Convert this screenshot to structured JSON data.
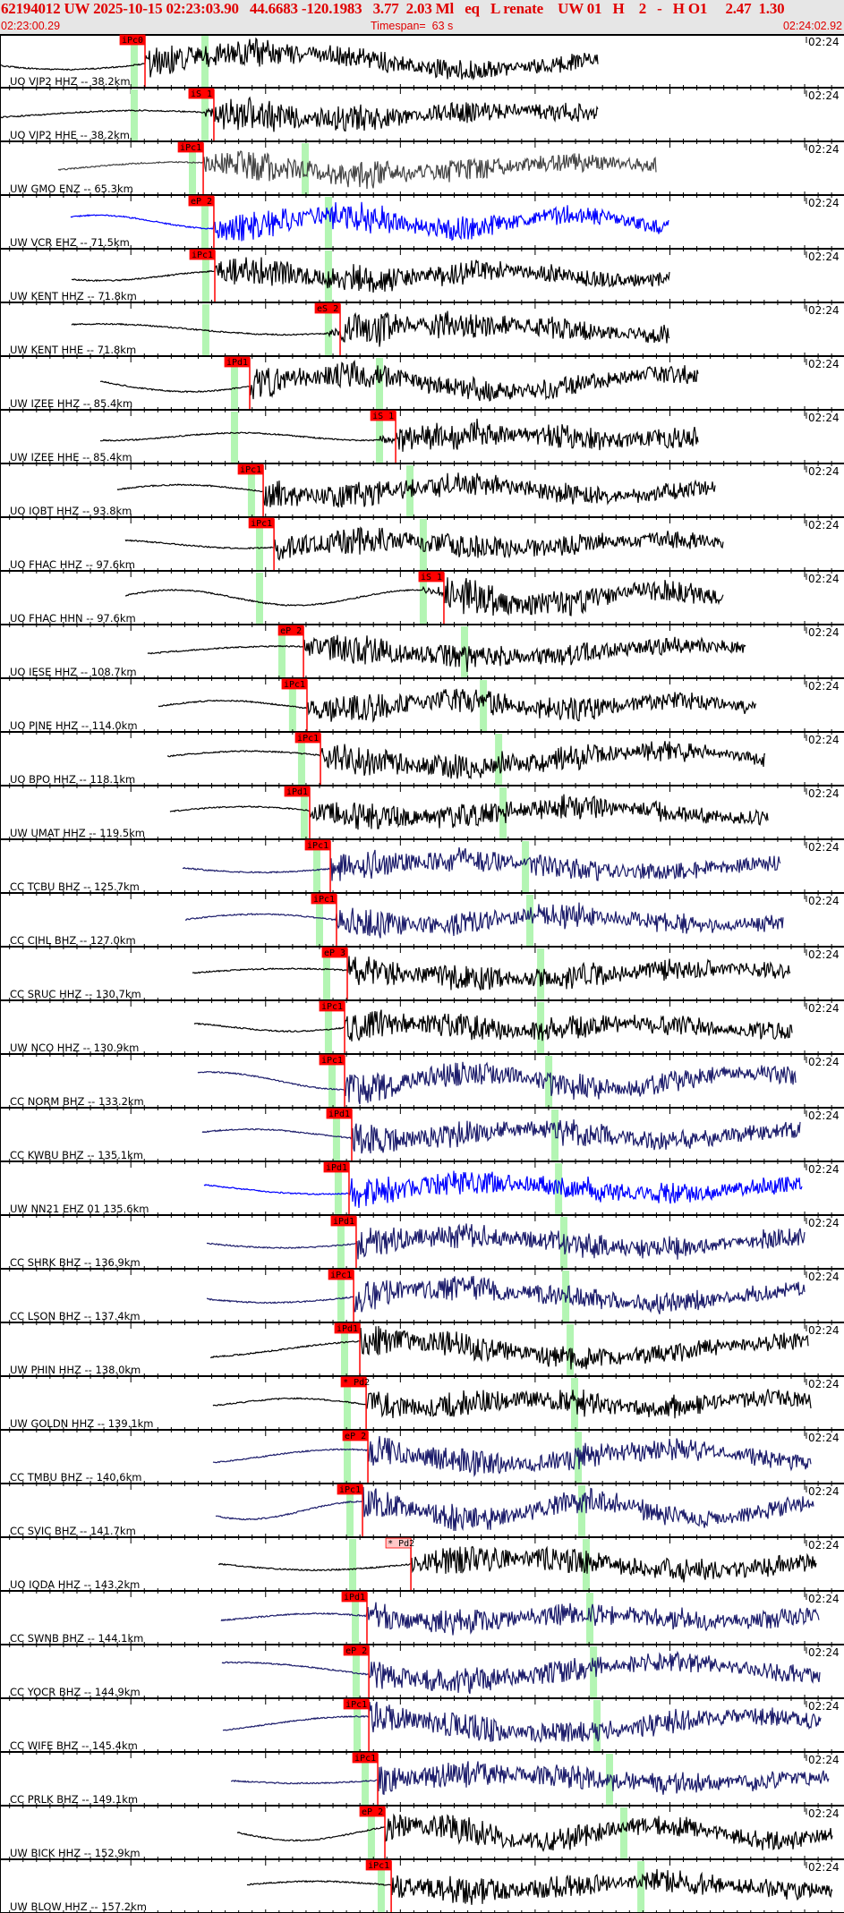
{
  "header": {
    "title": "62194012 UW 2025-10-15 02:23:03.90   44.6683 -120.1983   3.77  2.03 Ml   eq   L renate    UW 01   H    2   -   H O1     2.47  1.30",
    "start_time": "02:23:00.29",
    "timespan": "Timespan=  63 s",
    "end_time": "02:24:02.92"
  },
  "colors": {
    "header_text": "#e00000",
    "pick": "#ff0000",
    "theoretical_band": "#b3f5b3",
    "black": "#000000",
    "gray": "#444444",
    "blue": "#0000ff",
    "navy": "#1c1c6b"
  },
  "chart_data": {
    "type": "line",
    "x_axis": {
      "start": "02:23:00.29",
      "end": "02:24:02.92",
      "unit": "s",
      "major_tick_s": 10,
      "minor_tick_s": 1
    },
    "traces": [
      {
        "label": "UO VIP2 HHZ -- 38.2km",
        "right_label": "02:24",
        "color": "black",
        "pick": "iPc0",
        "pick_time": "02:23:11.05",
        "p_band": "02:23:10.25",
        "s_band": "02:23:15.50"
      },
      {
        "label": "UO VIP2 HHE -- 38.2km",
        "right_label": "02:24",
        "color": "black",
        "pick": "iS 1",
        "pick_time": "02:23:16.16",
        "p_band": "02:23:10.25",
        "s_band": "02:23:15.50"
      },
      {
        "label": "UW GMO ENZ -- 65.3km",
        "right_label": "02:24",
        "color": "gray",
        "pick": "iPc1",
        "pick_time": "02:23:15.37",
        "p_band": "02:23:14.57",
        "s_band": "02:23:22.94"
      },
      {
        "label": "UW VCR EHZ -- 71.5km",
        "right_label": "02:24",
        "color": "blue",
        "pick": "eP 2",
        "pick_time": "02:23:16.16",
        "p_band": "02:23:15.50",
        "s_band": "02:23:24.66"
      },
      {
        "label": "UW KENT HHZ -- 71.8km",
        "right_label": "02:24",
        "color": "black",
        "pick": "iPc1",
        "pick_time": "02:23:16.23",
        "p_band": "02:23:15.56",
        "s_band": "02:23:24.66"
      },
      {
        "label": "UW KENT HHE -- 71.8km",
        "right_label": "02:24",
        "color": "black",
        "pick": "eS 2",
        "pick_time": "02:23:25.53",
        "p_band": "02:23:15.56",
        "s_band": "02:23:24.66"
      },
      {
        "label": "UW IZEE HHZ -- 85.4km",
        "right_label": "02:24",
        "color": "black",
        "pick": "iPd1",
        "pick_time": "02:23:18.82",
        "p_band": "02:23:17.69",
        "s_band": "02:23:28.45"
      },
      {
        "label": "UW IZEE HHE -- 85.4km",
        "right_label": "02:24",
        "color": "black",
        "pick": "iS 1",
        "pick_time": "02:23:29.65",
        "p_band": "02:23:17.69",
        "s_band": "02:23:28.45"
      },
      {
        "label": "UO IOBT HHZ -- 93.8km",
        "right_label": "02:24",
        "color": "black",
        "pick": "iPc1",
        "pick_time": "02:23:19.82",
        "p_band": "02:23:18.95",
        "s_band": "02:23:30.71"
      },
      {
        "label": "UO FHAC HHZ -- 97.6km",
        "right_label": "02:24",
        "color": "black",
        "pick": "iPc1",
        "pick_time": "02:23:20.62",
        "p_band": "02:23:19.55",
        "s_band": "02:23:31.70"
      },
      {
        "label": "UO FHAC HHN -- 97.6km",
        "right_label": "02:24",
        "color": "black",
        "pick": "iS 1",
        "pick_time": "02:23:33.23",
        "p_band": "02:23:19.55",
        "s_band": "02:23:31.70"
      },
      {
        "label": "UO IESE HHZ -- 108.7km",
        "right_label": "02:24",
        "color": "black",
        "pick": "eP 2",
        "pick_time": "02:23:22.81",
        "p_band": "02:23:21.21",
        "s_band": "02:23:34.76"
      },
      {
        "label": "UO PINE HHZ -- 114.0km",
        "right_label": "02:24",
        "color": "black",
        "pick": "iPc1",
        "pick_time": "02:23:23.07",
        "p_band": "02:23:22.00",
        "s_band": "02:23:36.16"
      },
      {
        "label": "UO BPO HHZ -- 118.1km",
        "right_label": "02:24",
        "color": "black",
        "pick": "iPc1",
        "pick_time": "02:23:24.07",
        "p_band": "02:23:22.67",
        "s_band": "02:23:37.29"
      },
      {
        "label": "UW UMAT HHZ -- 119.5km",
        "right_label": "02:24",
        "color": "black",
        "pick": "iPd1",
        "pick_time": "02:23:23.27",
        "p_band": "02:23:22.87",
        "s_band": "02:23:37.62"
      },
      {
        "label": "CC TCBU BHZ -- 125.7km",
        "right_label": "02:24",
        "color": "navy",
        "pick": "iPc1",
        "pick_time": "02:23:24.80",
        "p_band": "02:23:23.80",
        "s_band": "02:23:39.28"
      },
      {
        "label": "CC CIHL BHZ -- 127.0km",
        "right_label": "02:24",
        "color": "navy",
        "pick": "iPc1",
        "pick_time": "02:23:25.26",
        "p_band": "02:23:24.00",
        "s_band": "02:23:39.61"
      },
      {
        "label": "CC SRUC HHZ -- 130.7km",
        "right_label": "02:24",
        "color": "black",
        "pick": "eP 3",
        "pick_time": "02:23:26.06",
        "p_band": "02:23:24.53",
        "s_band": "02:23:40.41"
      },
      {
        "label": "UW NCO HHZ -- 130.9km",
        "right_label": "02:24",
        "color": "black",
        "pick": "iPc1",
        "pick_time": "02:23:25.86",
        "p_band": "02:23:24.66",
        "s_band": "02:23:40.41"
      },
      {
        "label": "CC NORM BHZ -- 133.2km",
        "right_label": "02:24",
        "color": "navy",
        "pick": "iPc1",
        "pick_time": "02:23:25.86",
        "p_band": "02:23:24.93",
        "s_band": "02:23:41.01"
      },
      {
        "label": "CC KWBU BHZ -- 135.1km",
        "right_label": "02:24",
        "color": "navy",
        "pick": "iPd1",
        "pick_time": "02:23:26.39",
        "p_band": "02:23:25.26",
        "s_band": "02:23:41.47"
      },
      {
        "label": "UW NN21 EHZ 01 135.6km",
        "right_label": "02:24",
        "color": "blue",
        "pick": "iPd1",
        "pick_time": "02:23:26.19",
        "p_band": "02:23:25.39",
        "s_band": "02:23:41.74"
      },
      {
        "label": "CC SHRK BHZ -- 136.9km",
        "right_label": "02:24",
        "color": "navy",
        "pick": "iPd1",
        "pick_time": "02:23:26.72",
        "p_band": "02:23:25.59",
        "s_band": "02:23:42.13"
      },
      {
        "label": "CC LSON BHZ -- 137.4km",
        "right_label": "02:24",
        "color": "navy",
        "pick": "iPc1",
        "pick_time": "02:23:26.53",
        "p_band": "02:23:25.59",
        "s_band": "02:23:42.27"
      },
      {
        "label": "UW PHIN HHZ -- 138.0km",
        "right_label": "02:24",
        "color": "black",
        "pick": "iPd1",
        "pick_time": "02:23:26.99",
        "p_band": "02:23:25.86",
        "s_band": "02:23:42.60"
      },
      {
        "label": "UW GOLDN HHZ -- 139.1km",
        "right_label": "02:24",
        "color": "black",
        "pick": "* Pd2",
        "pick_time": "02:23:27.46",
        "p_band": "02:23:26.06",
        "s_band": "02:23:42.93"
      },
      {
        "label": "CC TMBU BHZ -- 140.6km",
        "right_label": "02:24",
        "color": "navy",
        "pick": "eP 2",
        "pick_time": "02:23:27.59",
        "p_band": "02:23:26.06",
        "s_band": "02:23:43.20"
      },
      {
        "label": "CC SVIC BHZ -- 141.7km",
        "right_label": "02:24",
        "color": "navy",
        "pick": "iPc1",
        "pick_time": "02:23:27.19",
        "p_band": "02:23:26.26",
        "s_band": "02:23:43.46"
      },
      {
        "label": "UO IQDA HHZ -- 143.2km",
        "right_label": "02:24",
        "color": "black",
        "pick": "* Pd2",
        "pick_time": "02:23:30.78",
        "pick_style": "pale",
        "p_band": "02:23:26.46",
        "s_band": "02:23:43.79"
      },
      {
        "label": "CC SWNB BHZ -- 144.1km",
        "right_label": "02:24",
        "color": "navy",
        "pick": "iPd1",
        "pick_time": "02:23:27.52",
        "p_band": "02:23:26.66",
        "s_band": "02:23:44.06"
      },
      {
        "label": "CC YOCR BHZ -- 144.9km",
        "right_label": "02:24",
        "color": "navy",
        "pick": "eP 2",
        "pick_time": "02:23:27.66",
        "p_band": "02:23:26.72",
        "s_band": "02:23:44.33"
      },
      {
        "label": "CC WIFE BHZ -- 145.4km",
        "right_label": "02:24",
        "color": "navy",
        "pick": "iPc1",
        "pick_time": "02:23:27.66",
        "p_band": "02:23:26.79",
        "s_band": "02:23:44.59"
      },
      {
        "label": "CC PRLK BHZ -- 149.1km",
        "right_label": "02:24",
        "color": "navy",
        "pick": "iPc1",
        "pick_time": "02:23:28.32",
        "p_band": "02:23:27.39",
        "s_band": "02:23:45.52"
      },
      {
        "label": "UW BICK HHZ -- 152.9km",
        "right_label": "02:24",
        "color": "black",
        "pick": "eP 2",
        "pick_time": "02:23:28.85",
        "p_band": "02:23:27.85",
        "s_band": "02:23:46.58"
      },
      {
        "label": "UW BLOW HHZ -- 157.2km",
        "right_label": "02:24",
        "color": "black",
        "pick": "iPc1",
        "pick_time": "02:23:29.32",
        "p_band": "02:23:28.58",
        "s_band": "02:23:47.85"
      }
    ]
  }
}
